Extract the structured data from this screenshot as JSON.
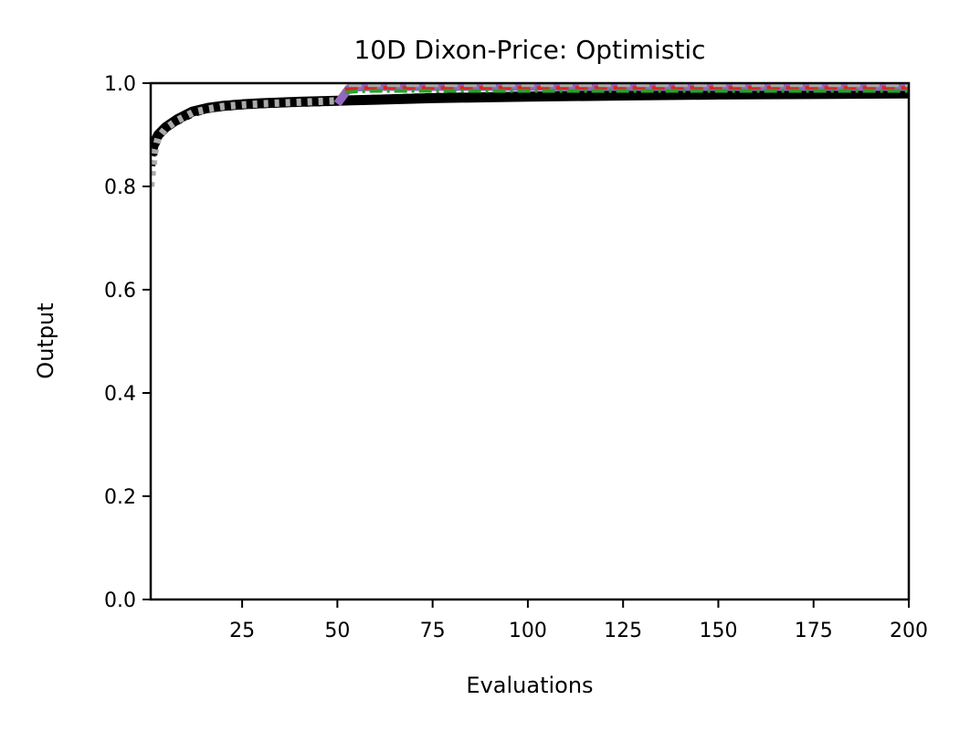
{
  "chart_data": {
    "type": "line",
    "title": "10D Dixon-Price: Optimistic",
    "xlabel": "Evaluations",
    "ylabel": "Output",
    "xlim": [
      1,
      200
    ],
    "ylim": [
      0.0,
      1.0
    ],
    "x_ticks": [
      25,
      50,
      75,
      100,
      125,
      150,
      175,
      200
    ],
    "y_ticks": [
      0.0,
      0.2,
      0.4,
      0.6,
      0.8,
      1.0
    ],
    "x_tick_labels": [
      "25",
      "50",
      "75",
      "100",
      "125",
      "150",
      "175",
      "200"
    ],
    "y_tick_labels": [
      "0.0",
      "0.2",
      "0.4",
      "0.6",
      "0.8",
      "1.0"
    ],
    "grid": false,
    "legend": "none",
    "series": [
      {
        "color": "#000000",
        "style": "solid",
        "x": [
          1,
          2,
          3,
          5,
          8,
          12,
          16,
          20,
          25,
          30,
          40,
          50,
          60,
          75,
          100,
          125,
          150,
          175,
          200
        ],
        "values": [
          0.86,
          0.885,
          0.9,
          0.915,
          0.93,
          0.945,
          0.952,
          0.956,
          0.959,
          0.961,
          0.964,
          0.966,
          0.968,
          0.971,
          0.974,
          0.976,
          0.978,
          0.979,
          0.98
        ]
      },
      {
        "color": "#000000",
        "style": "dotted",
        "x": [
          1,
          2,
          3,
          5,
          8,
          12,
          16,
          20,
          25,
          30,
          40,
          50,
          52,
          75,
          100,
          125,
          150,
          175,
          200
        ],
        "values": [
          0.84,
          0.88,
          0.9,
          0.915,
          0.928,
          0.943,
          0.951,
          0.955,
          0.958,
          0.96,
          0.963,
          0.965,
          0.967,
          0.972,
          0.975,
          0.977,
          0.979,
          0.98,
          0.981
        ]
      },
      {
        "color": "#aaaaaa",
        "style": "dotted",
        "x": [
          1,
          2,
          3,
          5,
          8,
          12,
          16,
          20,
          25,
          30,
          40,
          50
        ],
        "values": [
          0.8,
          0.865,
          0.895,
          0.913,
          0.928,
          0.943,
          0.95,
          0.955,
          0.958,
          0.96,
          0.963,
          0.966
        ]
      },
      {
        "color": "#9467bd",
        "style": "solid",
        "x": [
          50,
          51,
          52,
          53,
          55,
          60,
          75,
          100,
          125,
          150,
          175,
          200
        ],
        "values": [
          0.96,
          0.97,
          0.98,
          0.99,
          0.992,
          0.993,
          0.993,
          0.993,
          0.993,
          0.993,
          0.993,
          0.993
        ]
      },
      {
        "color": "#d62728",
        "style": "dashed",
        "x": [
          52,
          55,
          60,
          75,
          100,
          125,
          150,
          175,
          200
        ],
        "values": [
          0.988,
          0.99,
          0.991,
          0.991,
          0.991,
          0.991,
          0.991,
          0.991,
          0.991
        ]
      },
      {
        "color": "#2ca02c",
        "style": "dashdot",
        "x": [
          52,
          55,
          60,
          75,
          100,
          125,
          150,
          175,
          200
        ],
        "values": [
          0.982,
          0.984,
          0.985,
          0.985,
          0.985,
          0.985,
          0.985,
          0.985,
          0.985
        ]
      },
      {
        "color": "#aaaaaa",
        "style": "dashed",
        "x": [
          53,
          55,
          60,
          75,
          100,
          125,
          150,
          175,
          200
        ],
        "values": [
          0.996,
          0.996,
          0.996,
          0.996,
          0.996,
          0.996,
          0.996,
          0.996,
          0.996
        ]
      }
    ]
  }
}
